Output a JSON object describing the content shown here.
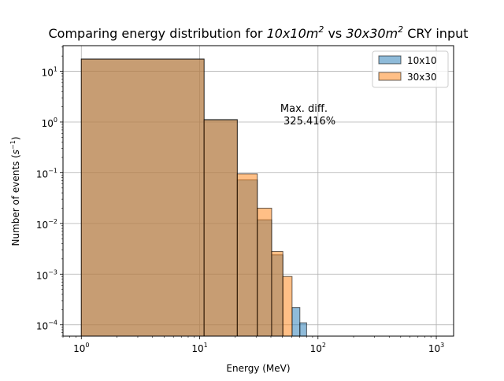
{
  "chart_data": {
    "type": "bar",
    "title": "Comparing energy distribution for 10x10m² vs 30x30m² CRY input",
    "title_parts": {
      "prefix": "Comparing energy distribution for ",
      "a_base": "10x10m",
      "a_sup": "2",
      "middle": " vs ",
      "b_base": "30x30m",
      "b_sup": "2",
      "suffix": " CRY input"
    },
    "xlabel": "Energy (MeV)",
    "ylabel": "Number of events (s⁻¹)",
    "ylabel_parts": {
      "base": "Number of events (",
      "sym": "s",
      "sup": "−1",
      "close": ")"
    },
    "x_scale": "log",
    "y_scale": "log",
    "xlim": [
      0.7,
      1400
    ],
    "ylim": [
      6e-05,
      32
    ],
    "x_ticks": [
      {
        "value": 1,
        "label": "10",
        "sup": "0"
      },
      {
        "value": 10,
        "label": "10",
        "sup": "1"
      },
      {
        "value": 100,
        "label": "10",
        "sup": "2"
      },
      {
        "value": 1000,
        "label": "10",
        "sup": "3"
      }
    ],
    "y_ticks": [
      {
        "value": 0.0001,
        "label": "10",
        "sup": "−4"
      },
      {
        "value": 0.001,
        "label": "10",
        "sup": "−3"
      },
      {
        "value": 0.01,
        "label": "10",
        "sup": "−2"
      },
      {
        "value": 0.1,
        "label": "10",
        "sup": "−1"
      },
      {
        "value": 1,
        "label": "10",
        "sup": "0"
      },
      {
        "value": 10,
        "label": "10",
        "sup": "1"
      }
    ],
    "grid": true,
    "legend_position": "top-right",
    "bin_edges": [
      1,
      10.9,
      20.8,
      30.7,
      40.6,
      50.5,
      60.4,
      70.3,
      80.2
    ],
    "series": [
      {
        "name": "10x10",
        "color": "#1f77b4",
        "values": [
          17.5,
          1.12,
          0.072,
          0.0118,
          0.0024,
          0,
          0.00022,
          0.00011
        ]
      },
      {
        "name": "30x30",
        "color": "#ff7f0e",
        "values": [
          17.3,
          1.1,
          0.095,
          0.02,
          0.0028,
          0.0009,
          0,
          0
        ]
      }
    ],
    "annotation": {
      "line1": "Max. diff.",
      "line2": " 325.416%",
      "x": 48,
      "y": 1.6
    }
  }
}
